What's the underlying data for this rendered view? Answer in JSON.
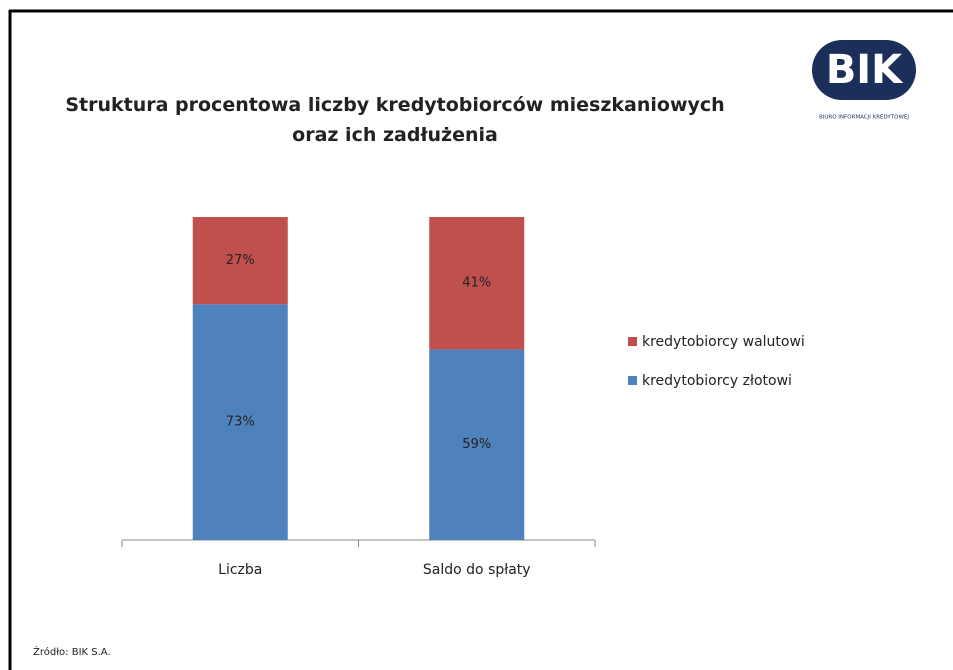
{
  "logo": {
    "text": "BIK",
    "subtitle": "BIURO INFORMACJI KREDYTOWEJ"
  },
  "chart_data": {
    "type": "stacked_bar",
    "title": "Struktura procentowa liczby kredytobiorców mieszkaniowych oraz ich zadłużenia",
    "categories": [
      "Liczba",
      "Saldo do spłaty"
    ],
    "series": [
      {
        "name": "kredytobiorcy złotowi",
        "color": "#4f81bd",
        "values": [
          73,
          59
        ],
        "value_labels": [
          "73%",
          "59%"
        ]
      },
      {
        "name": "kredytobiorcy walutowi",
        "color": "#c0504d",
        "values": [
          27,
          41
        ],
        "value_labels": [
          "27%",
          "41%"
        ]
      }
    ],
    "ylim": [
      0,
      100
    ],
    "legend": "right",
    "source": "Źródło: BIK S.A."
  }
}
